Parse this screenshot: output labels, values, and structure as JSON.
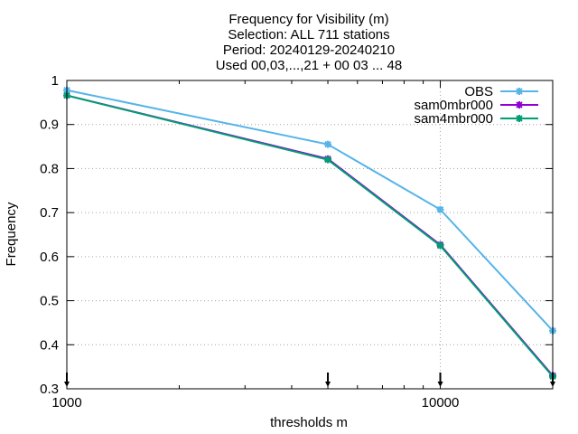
{
  "chart_data": {
    "type": "line",
    "title_lines": [
      "Frequency  for Visibility (m)",
      "Selection: ALL    711 stations",
      "Period: 20240129-20240210",
      "Used 00,03,...,21 + 00 03 ... 48"
    ],
    "xlabel": "thresholds m",
    "ylabel": "Frequency",
    "x_scale": "log",
    "xlim": [
      1000,
      20000
    ],
    "ylim": [
      0.3,
      1.0
    ],
    "x_ticks": [
      1000,
      10000
    ],
    "x_tick_labels": [
      "1000",
      "10000"
    ],
    "y_ticks": [
      0.3,
      0.4,
      0.5,
      0.6,
      0.7,
      0.8,
      0.9,
      1.0
    ],
    "y_tick_labels": [
      "0.3",
      "0.4",
      "0.5",
      "0.6",
      "0.7",
      "0.8",
      "0.9",
      "1"
    ],
    "grid": true,
    "legend_position": "top-right",
    "x": [
      1000,
      5000,
      10000,
      20000
    ],
    "series": [
      {
        "name": "OBS",
        "color": "#56b4e9",
        "values": [
          0.978,
          0.855,
          0.707,
          0.432
        ]
      },
      {
        "name": "sam0mbr000",
        "color": "#9400d3",
        "values": [
          0.966,
          0.822,
          0.627,
          0.33
        ]
      },
      {
        "name": "sam4mbr000",
        "color": "#009e73",
        "values": [
          0.966,
          0.82,
          0.625,
          0.328
        ]
      }
    ],
    "sample_marker_x": [
      1000,
      5000,
      10000,
      20000
    ]
  }
}
